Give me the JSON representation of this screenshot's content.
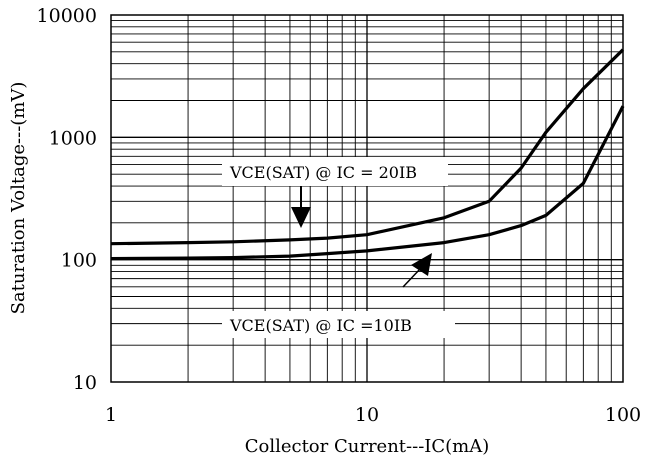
{
  "chart_data": {
    "type": "line",
    "title": "",
    "xlabel": "Collector Current---IC(mA)",
    "ylabel": "Saturation Voltage---(mV)",
    "xscale": "log",
    "yscale": "log",
    "xlim": [
      1,
      100
    ],
    "ylim": [
      10,
      10000
    ],
    "grid": true,
    "x_ticks": [
      "1",
      "10",
      "100"
    ],
    "y_ticks": [
      "10",
      "100",
      "1000",
      "10000"
    ],
    "series": [
      {
        "x": [
          1,
          2,
          3,
          5,
          7,
          10,
          20,
          30,
          40,
          50,
          70,
          100
        ],
        "y": [
          135,
          138,
          140,
          145,
          150,
          160,
          220,
          300,
          560,
          1100,
          2500,
          5200
        ]
      },
      {
        "x": [
          1,
          2,
          3,
          5,
          7,
          10,
          20,
          30,
          40,
          50,
          70,
          100
        ],
        "y": [
          102,
          103,
          104,
          107,
          112,
          118,
          138,
          160,
          190,
          230,
          420,
          1800
        ]
      }
    ],
    "annotations": [
      {
        "text": "VCE(SAT) @ IC = 20IB",
        "points_to_series": 0
      },
      {
        "text": "VCE(SAT) @ IC =10IB",
        "points_to_series": 1
      }
    ]
  }
}
